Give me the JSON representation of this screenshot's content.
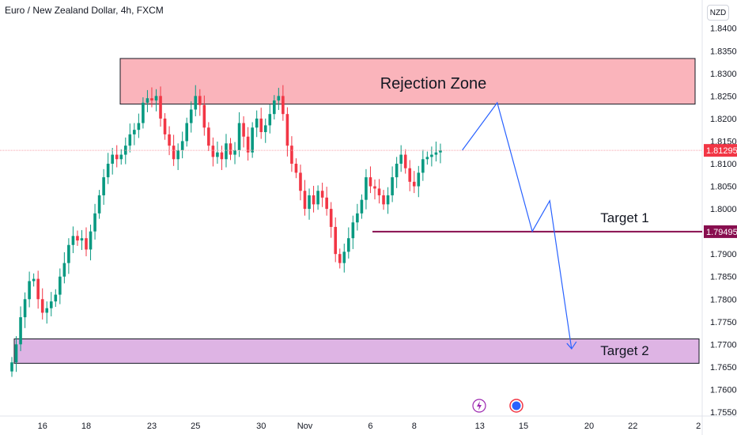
{
  "header": {
    "title": "Euro / New Zealand Dollar, 4h, FXCM",
    "currency": "NZD"
  },
  "chart_data": {
    "type": "candlestick",
    "title": "Euro / New Zealand Dollar, 4h, FXCM",
    "ylim": [
      1.7545,
      1.8415
    ],
    "y_ticks": [
      "1.84000",
      "1.83500",
      "1.83000",
      "1.82500",
      "1.82000",
      "1.81500",
      "1.81000",
      "1.80500",
      "1.80000",
      "1.79500",
      "1.79000",
      "1.78500",
      "1.78000",
      "1.77500",
      "1.77000",
      "1.76500",
      "1.76000",
      "1.75500"
    ],
    "x_ticks": [
      {
        "label": "16",
        "index": 7
      },
      {
        "label": "18",
        "index": 17
      },
      {
        "label": "23",
        "index": 32
      },
      {
        "label": "25",
        "index": 42
      },
      {
        "label": "30",
        "index": 57
      },
      {
        "label": "Nov",
        "index": 67
      },
      {
        "label": "6",
        "index": 82
      },
      {
        "label": "8",
        "index": 92
      },
      {
        "label": "13",
        "index": 107
      },
      {
        "label": "15",
        "index": 117
      },
      {
        "label": "20",
        "index": 132
      },
      {
        "label": "22",
        "index": 142
      },
      {
        "label": "2",
        "index": 157
      }
    ],
    "current_price": "1.81295",
    "current_price_value": 1.81295,
    "target_price": "1.79495",
    "target_price_value": 1.79495,
    "up_color": "#089981",
    "down_color": "#f23645",
    "closes": [
      1.766,
      1.77,
      1.776,
      1.78,
      1.784,
      1.7845,
      1.78,
      1.777,
      1.778,
      1.7795,
      1.781,
      1.785,
      1.788,
      1.792,
      1.794,
      1.793,
      1.7935,
      1.791,
      1.795,
      1.799,
      1.803,
      1.807,
      1.81,
      1.812,
      1.811,
      1.812,
      1.814,
      1.8165,
      1.8175,
      1.819,
      1.8235,
      1.8245,
      1.824,
      1.825,
      1.82,
      1.8165,
      1.814,
      1.811,
      1.813,
      1.815,
      1.819,
      1.822,
      1.825,
      1.823,
      1.818,
      1.814,
      1.8115,
      1.8125,
      1.811,
      1.8145,
      1.812,
      1.813,
      1.819,
      1.816,
      1.8125,
      1.818,
      1.82,
      1.817,
      1.8185,
      1.821,
      1.824,
      1.825,
      1.821,
      1.814,
      1.81,
      1.808,
      1.804,
      1.8,
      1.803,
      1.801,
      1.804,
      1.8025,
      1.8,
      1.796,
      1.79,
      1.788,
      1.7905,
      1.7935,
      1.797,
      1.799,
      1.802,
      1.807,
      1.805,
      1.8045,
      1.803,
      1.801,
      1.803,
      1.807,
      1.81,
      1.812,
      1.809,
      1.806,
      1.805,
      1.808,
      1.811,
      1.8115,
      1.812,
      1.8125,
      1.81295
    ],
    "rejection_zone": {
      "label": "Rejection Zone",
      "top": 1.8333,
      "bottom": 1.8232
    },
    "target1": {
      "label": "Target 1",
      "price": 1.79495
    },
    "target2": {
      "label": "Target 2",
      "top": 1.7712,
      "bottom": 1.7658
    },
    "projection_path": [
      {
        "index": 103,
        "price": 1.813
      },
      {
        "index": 111,
        "price": 1.8235
      },
      {
        "index": 119,
        "price": 1.795
      },
      {
        "index": 123,
        "price": 1.8018
      },
      {
        "index": 128,
        "price": 1.769
      }
    ]
  },
  "icons": {
    "lightning": "lightning-icon",
    "event": "economic-event-icon"
  }
}
